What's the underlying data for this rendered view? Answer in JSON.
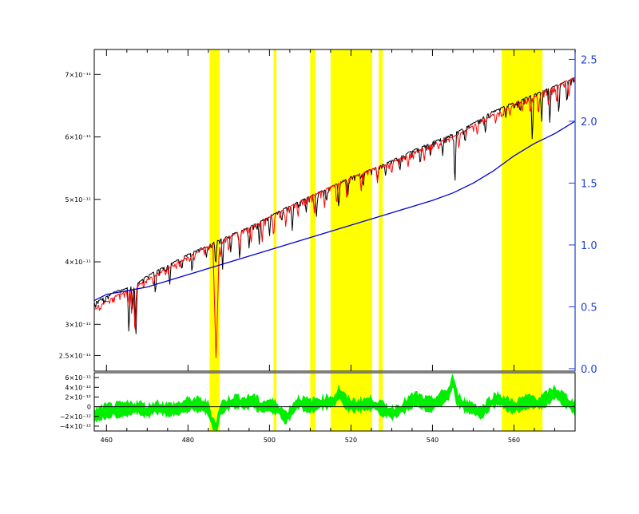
{
  "chart_data": [
    {
      "type": "line",
      "title": "",
      "xlabel": "",
      "ylabel": "",
      "xlim": [
        457,
        575
      ],
      "ylim": [
        2.25e-11,
        7.4e-11
      ],
      "y2lim": [
        -0.02,
        2.58
      ],
      "y_ticks": [
        {
          "value": 2.5e-11,
          "label": "2.5×10⁻¹¹"
        },
        {
          "value": 3e-11,
          "label": "3×10⁻¹¹"
        },
        {
          "value": 4e-11,
          "label": "4×10⁻¹¹"
        },
        {
          "value": 5e-11,
          "label": "5×10⁻¹¹"
        },
        {
          "value": 6e-11,
          "label": "6×10⁻¹¹"
        },
        {
          "value": 7e-11,
          "label": "7×10⁻¹¹"
        }
      ],
      "y2_ticks": [
        {
          "value": 0.0,
          "label": "0.0"
        },
        {
          "value": 0.5,
          "label": "0.5"
        },
        {
          "value": 1.0,
          "label": "1.0"
        },
        {
          "value": 1.5,
          "label": "1.5"
        },
        {
          "value": 2.0,
          "label": "2.0"
        },
        {
          "value": 2.5,
          "label": "2.5"
        }
      ],
      "masked_regions": [
        [
          485.3,
          487.8
        ],
        [
          501.0,
          501.7
        ],
        [
          510.0,
          511.3
        ],
        [
          515.0,
          525.2
        ],
        [
          526.8,
          527.8
        ],
        [
          557.0,
          567.0
        ]
      ],
      "series": [
        {
          "color": "#000000",
          "points": [
            [
              457,
              3.35e-11
            ],
            [
              462,
              3.52e-11
            ],
            [
              466,
              3.6e-11
            ],
            [
              470,
              3.78e-11
            ],
            [
              475,
              3.95e-11
            ],
            [
              480,
              4.12e-11
            ],
            [
              485,
              4.27e-11
            ],
            [
              490,
              4.42e-11
            ],
            [
              495,
              4.56e-11
            ],
            [
              500,
              4.73e-11
            ],
            [
              505,
              4.9e-11
            ],
            [
              510,
              5.05e-11
            ],
            [
              515,
              5.2e-11
            ],
            [
              520,
              5.36e-11
            ],
            [
              525,
              5.48e-11
            ],
            [
              530,
              5.62e-11
            ],
            [
              535,
              5.78e-11
            ],
            [
              540,
              5.92e-11
            ],
            [
              545,
              6.05e-11
            ],
            [
              550,
              6.22e-11
            ],
            [
              555,
              6.42e-11
            ],
            [
              560,
              6.55e-11
            ],
            [
              565,
              6.68e-11
            ],
            [
              570,
              6.82e-11
            ],
            [
              575,
              6.95e-11
            ]
          ],
          "dips": [
            [
              465.5,
              2.8e-11
            ],
            [
              466.4,
              3.2e-11
            ],
            [
              467.2,
              2.68e-11
            ],
            [
              472.0,
              3.45e-11
            ],
            [
              475.5,
              3.6e-11
            ],
            [
              478.5,
              3.85e-11
            ],
            [
              481.0,
              3.8e-11
            ],
            [
              484.5,
              4.05e-11
            ],
            [
              486.8,
              3.9e-11
            ],
            [
              488.5,
              3.88e-11
            ],
            [
              490.5,
              4.14e-11
            ],
            [
              492.7,
              3.98e-11
            ],
            [
              495.0,
              4.2e-11
            ],
            [
              497.5,
              4.28e-11
            ],
            [
              500.0,
              4.4e-11
            ],
            [
              503.0,
              4.62e-11
            ],
            [
              505.6,
              4.5e-11
            ],
            [
              509.0,
              4.78e-11
            ],
            [
              511.5,
              4.68e-11
            ],
            [
              514.0,
              4.95e-11
            ],
            [
              517.0,
              4.82e-11
            ],
            [
              519.2,
              5e-11
            ],
            [
              523.0,
              5.18e-11
            ],
            [
              526.5,
              5.3e-11
            ],
            [
              528.5,
              5.36e-11
            ],
            [
              532.0,
              5.43e-11
            ],
            [
              537.0,
              5.53e-11
            ],
            [
              539.5,
              5.66e-11
            ],
            [
              542.5,
              5.7e-11
            ],
            [
              545.5,
              5.15e-11
            ],
            [
              548.0,
              5.88e-11
            ],
            [
              553.0,
              6.02e-11
            ],
            [
              558.0,
              6.3e-11
            ],
            [
              561.5,
              6.38e-11
            ],
            [
              564.5,
              5.88e-11
            ],
            [
              566.8,
              6.25e-11
            ],
            [
              568.8,
              6.2e-11
            ],
            [
              571.0,
              6.32e-11
            ],
            [
              573.0,
              6.5e-11
            ]
          ],
          "emission": [
            [
              486.0,
              4e-11
            ]
          ]
        },
        {
          "color": "#ff0000",
          "points": [
            [
              457,
              3.25e-11
            ],
            [
              462,
              3.45e-11
            ],
            [
              466,
              3.55e-11
            ],
            [
              470,
              3.72e-11
            ],
            [
              475,
              3.9e-11
            ],
            [
              480,
              4.08e-11
            ],
            [
              485,
              4.25e-11
            ],
            [
              490,
              4.4e-11
            ],
            [
              495,
              4.55e-11
            ],
            [
              500,
              4.72e-11
            ],
            [
              505,
              4.88e-11
            ],
            [
              510,
              5.05e-11
            ],
            [
              515,
              5.2e-11
            ],
            [
              520,
              5.35e-11
            ],
            [
              525,
              5.48e-11
            ],
            [
              530,
              5.6e-11
            ],
            [
              535,
              5.74e-11
            ],
            [
              540,
              5.88e-11
            ],
            [
              545,
              6e-11
            ],
            [
              550,
              6.18e-11
            ],
            [
              555,
              6.36e-11
            ],
            [
              560,
              6.52e-11
            ],
            [
              565,
              6.65e-11
            ],
            [
              570,
              6.8e-11
            ],
            [
              575,
              6.96e-11
            ]
          ],
          "dips": [
            [
              465.3,
              3.3e-11
            ],
            [
              466.2,
              3.15e-11
            ],
            [
              467.0,
              2.72e-11
            ],
            [
              471.5,
              3.6e-11
            ],
            [
              474.5,
              3.78e-11
            ],
            [
              478.0,
              3.9e-11
            ],
            [
              481.5,
              4.02e-11
            ],
            [
              486.9,
              2.42e-11
            ],
            [
              488.0,
              4.05e-11
            ],
            [
              490.0,
              4.14e-11
            ],
            [
              492.7,
              4.12e-11
            ],
            [
              495.5,
              4.3e-11
            ],
            [
              498.2,
              4.3e-11
            ],
            [
              501.0,
              4.36e-11
            ],
            [
              504.0,
              4.55e-11
            ],
            [
              507.0,
              4.7e-11
            ],
            [
              511.0,
              4.78e-11
            ],
            [
              513.5,
              4.85e-11
            ],
            [
              516.5,
              4.88e-11
            ],
            [
              519.0,
              4.95e-11
            ],
            [
              522.5,
              5.12e-11
            ],
            [
              526.5,
              5.25e-11
            ],
            [
              530.0,
              5.38e-11
            ],
            [
              534.0,
              5.5e-11
            ],
            [
              538.0,
              5.62e-11
            ],
            [
              541.5,
              5.78e-11
            ],
            [
              546.5,
              5.8e-11
            ],
            [
              551.0,
              6.02e-11
            ],
            [
              555.5,
              6.2e-11
            ],
            [
              559.0,
              6.32e-11
            ],
            [
              562.0,
              6.38e-11
            ],
            [
              564.0,
              6.35e-11
            ],
            [
              566.0,
              6.32e-11
            ],
            [
              568.5,
              6.45e-11
            ],
            [
              570.5,
              6.5e-11
            ],
            [
              573.5,
              6.62e-11
            ]
          ]
        },
        {
          "color": "#0000cc",
          "axis": "right",
          "points": [
            [
              457,
              0.55
            ],
            [
              460,
              0.6
            ],
            [
              465,
              0.63
            ],
            [
              470,
              0.66
            ],
            [
              475,
              0.71
            ],
            [
              480,
              0.76
            ],
            [
              485,
              0.81
            ],
            [
              490,
              0.86
            ],
            [
              495,
              0.91
            ],
            [
              500,
              0.96
            ],
            [
              505,
              1.01
            ],
            [
              510,
              1.06
            ],
            [
              515,
              1.11
            ],
            [
              520,
              1.16
            ],
            [
              525,
              1.21
            ],
            [
              530,
              1.26
            ],
            [
              535,
              1.31
            ],
            [
              540,
              1.36
            ],
            [
              545,
              1.42
            ],
            [
              550,
              1.5
            ],
            [
              555,
              1.6
            ],
            [
              560,
              1.72
            ],
            [
              565,
              1.82
            ],
            [
              570,
              1.9
            ],
            [
              575,
              2.0
            ]
          ]
        }
      ]
    },
    {
      "type": "line",
      "title": "",
      "xlabel": "",
      "ylabel": "",
      "xlim": [
        457,
        575
      ],
      "ylim": [
        -5e-12,
        7e-12
      ],
      "x_ticks": [
        {
          "value": 460,
          "label": "460"
        },
        {
          "value": 480,
          "label": "480"
        },
        {
          "value": 500,
          "label": "500"
        },
        {
          "value": 520,
          "label": "520"
        },
        {
          "value": 540,
          "label": "540"
        },
        {
          "value": 560,
          "label": "560"
        }
      ],
      "y_ticks": [
        {
          "value": -4e-12,
          "label": "−4×10⁻¹²"
        },
        {
          "value": -2e-12,
          "label": "−2×10⁻¹²"
        },
        {
          "value": 0,
          "label": "0"
        },
        {
          "value": 2e-12,
          "label": "2×10⁻¹²"
        },
        {
          "value": 4e-12,
          "label": "4×10⁻¹²"
        },
        {
          "value": 6e-12,
          "label": "6×10⁻¹²"
        }
      ],
      "masked_regions": [
        [
          485.3,
          487.8
        ],
        [
          501.0,
          501.7
        ],
        [
          510.0,
          511.3
        ],
        [
          515.0,
          525.2
        ],
        [
          526.8,
          527.8
        ],
        [
          557.0,
          567.0
        ]
      ],
      "residual": {
        "color": "#00ee00",
        "points": [
          [
            457,
            -2e-12
          ],
          [
            460,
            -1e-12
          ],
          [
            463,
            -8e-13
          ],
          [
            466,
            -5e-13
          ],
          [
            468,
            -3e-13
          ],
          [
            470,
            -1.2e-12
          ],
          [
            472,
            -2e-13
          ],
          [
            475,
            -8e-13
          ],
          [
            478,
            -5e-13
          ],
          [
            480,
            3e-13
          ],
          [
            483,
            3e-13
          ],
          [
            485,
            -5e-13
          ],
          [
            486,
            -3.5e-12
          ],
          [
            487,
            -4.3e-12
          ],
          [
            488,
            -5e-13
          ],
          [
            490,
            5e-13
          ],
          [
            492,
            1e-12
          ],
          [
            494,
            5e-13
          ],
          [
            496,
            1.2e-12
          ],
          [
            498,
            -3e-13
          ],
          [
            500,
            2e-13
          ],
          [
            502,
            -5e-13
          ],
          [
            504,
            -2.5e-12
          ],
          [
            505,
            -1.5e-12
          ],
          [
            507,
            8e-13
          ],
          [
            510,
            0.0
          ],
          [
            512,
            5e-13
          ],
          [
            514,
            8e-13
          ],
          [
            516,
            1e-12
          ],
          [
            517,
            2.8e-12
          ],
          [
            519,
            5e-13
          ],
          [
            521,
            0.0
          ],
          [
            523,
            3e-13
          ],
          [
            525,
            5e-13
          ],
          [
            527,
            -3e-13
          ],
          [
            530,
            -1.5e-12
          ],
          [
            532,
            -8e-13
          ],
          [
            534,
            5e-13
          ],
          [
            536,
            1.5e-12
          ],
          [
            538,
            5e-13
          ],
          [
            540,
            3e-13
          ],
          [
            542,
            1.5e-12
          ],
          [
            544,
            2.5e-12
          ],
          [
            545,
            5.5e-12
          ],
          [
            546,
            1.5e-12
          ],
          [
            548,
            0.0
          ],
          [
            550,
            -5e-13
          ],
          [
            552,
            -1.5e-12
          ],
          [
            554,
            5e-13
          ],
          [
            556,
            1.5e-12
          ],
          [
            558,
            5e-13
          ],
          [
            560,
            -3e-13
          ],
          [
            562,
            5e-13
          ],
          [
            564,
            1e-12
          ],
          [
            566,
            5e-13
          ],
          [
            568,
            1.5e-12
          ],
          [
            570,
            2.8e-12
          ],
          [
            572,
            1.5e-12
          ],
          [
            575,
            -5e-13
          ]
        ]
      }
    }
  ]
}
